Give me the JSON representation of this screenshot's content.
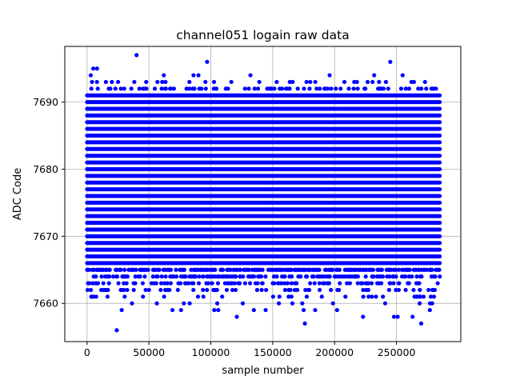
{
  "chart_data": {
    "type": "scatter",
    "title": "channel051 logain raw data",
    "xlabel": "sample number",
    "ylabel": "ADC Code",
    "xlim": [
      -18000,
      302000
    ],
    "ylim": [
      7654.3,
      7698.3
    ],
    "grid": true,
    "marker_color": "#0000ff",
    "x_ticks": [
      0,
      50000,
      100000,
      150000,
      200000,
      250000
    ],
    "x_tick_labels": [
      "0",
      "50000",
      "100000",
      "150000",
      "200000",
      "250000"
    ],
    "y_ticks": [
      7660,
      7670,
      7680,
      7690
    ],
    "y_tick_labels": [
      "7660",
      "7670",
      "7680",
      "7690"
    ],
    "sample_range": [
      0,
      285000
    ],
    "dense_band": [
      7666,
      7691
    ],
    "sparse_band_low": [
      7659,
      7666
    ],
    "sparse_band_high": [
      7691,
      7694
    ],
    "outliers": [
      {
        "x": 40000,
        "y": 7697
      },
      {
        "x": 97000,
        "y": 7696
      },
      {
        "x": 245000,
        "y": 7696
      },
      {
        "x": 5000,
        "y": 7695
      },
      {
        "x": 8000,
        "y": 7695
      },
      {
        "x": 3000,
        "y": 7694
      },
      {
        "x": 62000,
        "y": 7694
      },
      {
        "x": 86000,
        "y": 7694
      },
      {
        "x": 90000,
        "y": 7694
      },
      {
        "x": 132000,
        "y": 7694
      },
      {
        "x": 196000,
        "y": 7694
      },
      {
        "x": 232000,
        "y": 7694
      },
      {
        "x": 255000,
        "y": 7694
      },
      {
        "x": 24000,
        "y": 7656
      },
      {
        "x": 176000,
        "y": 7657
      },
      {
        "x": 270000,
        "y": 7657
      },
      {
        "x": 121000,
        "y": 7658
      },
      {
        "x": 223000,
        "y": 7658
      },
      {
        "x": 248000,
        "y": 7658
      },
      {
        "x": 251000,
        "y": 7658
      },
      {
        "x": 263000,
        "y": 7658
      },
      {
        "x": 28000,
        "y": 7659
      },
      {
        "x": 69000,
        "y": 7659
      },
      {
        "x": 106000,
        "y": 7659
      },
      {
        "x": 175000,
        "y": 7659
      },
      {
        "x": 202000,
        "y": 7659
      },
      {
        "x": 277000,
        "y": 7659
      }
    ]
  }
}
